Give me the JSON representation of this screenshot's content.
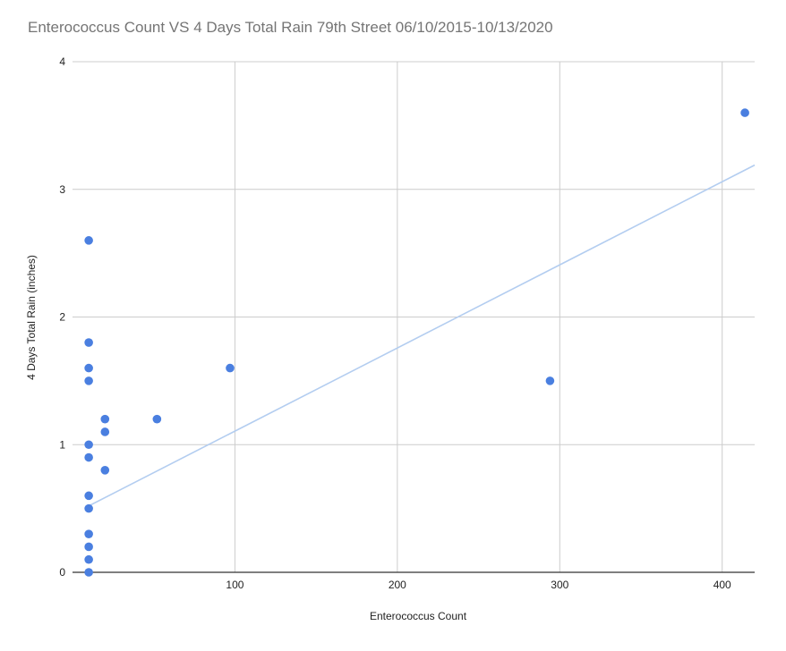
{
  "chart_data": {
    "type": "scatter",
    "title": "Enterococcus Count VS 4 Days Total Rain 79th Street 06/10/2015-10/13/2020",
    "xlabel": "Enterococcus Count",
    "ylabel": "4 Days Total Rain (inches)",
    "xlim": [
      0,
      420
    ],
    "ylim": [
      0,
      4
    ],
    "x_ticks": [
      100,
      200,
      300,
      400
    ],
    "y_ticks": [
      0,
      1,
      2,
      3,
      4
    ],
    "grid": true,
    "legend": "none",
    "point_color": "#4a7fe0",
    "trendline_color": "#b3cdf0",
    "series": [
      {
        "points": [
          {
            "x": 10,
            "y": 0
          },
          {
            "x": 10,
            "y": 0.1
          },
          {
            "x": 10,
            "y": 0.2
          },
          {
            "x": 10,
            "y": 0.3
          },
          {
            "x": 10,
            "y": 0.5
          },
          {
            "x": 10,
            "y": 0.6
          },
          {
            "x": 10,
            "y": 0.9
          },
          {
            "x": 10,
            "y": 1.0
          },
          {
            "x": 10,
            "y": 1.5
          },
          {
            "x": 10,
            "y": 1.6
          },
          {
            "x": 10,
            "y": 1.8
          },
          {
            "x": 10,
            "y": 2.6
          },
          {
            "x": 20,
            "y": 0.8
          },
          {
            "x": 20,
            "y": 1.1
          },
          {
            "x": 20,
            "y": 1.2
          },
          {
            "x": 52,
            "y": 1.2
          },
          {
            "x": 97,
            "y": 1.6
          },
          {
            "x": 294,
            "y": 1.5
          },
          {
            "x": 414,
            "y": 3.6
          }
        ]
      }
    ],
    "trendline": {
      "type": "linear",
      "x_start": 10,
      "y_start": 0.52,
      "x_end": 420,
      "y_end": 3.19
    }
  }
}
